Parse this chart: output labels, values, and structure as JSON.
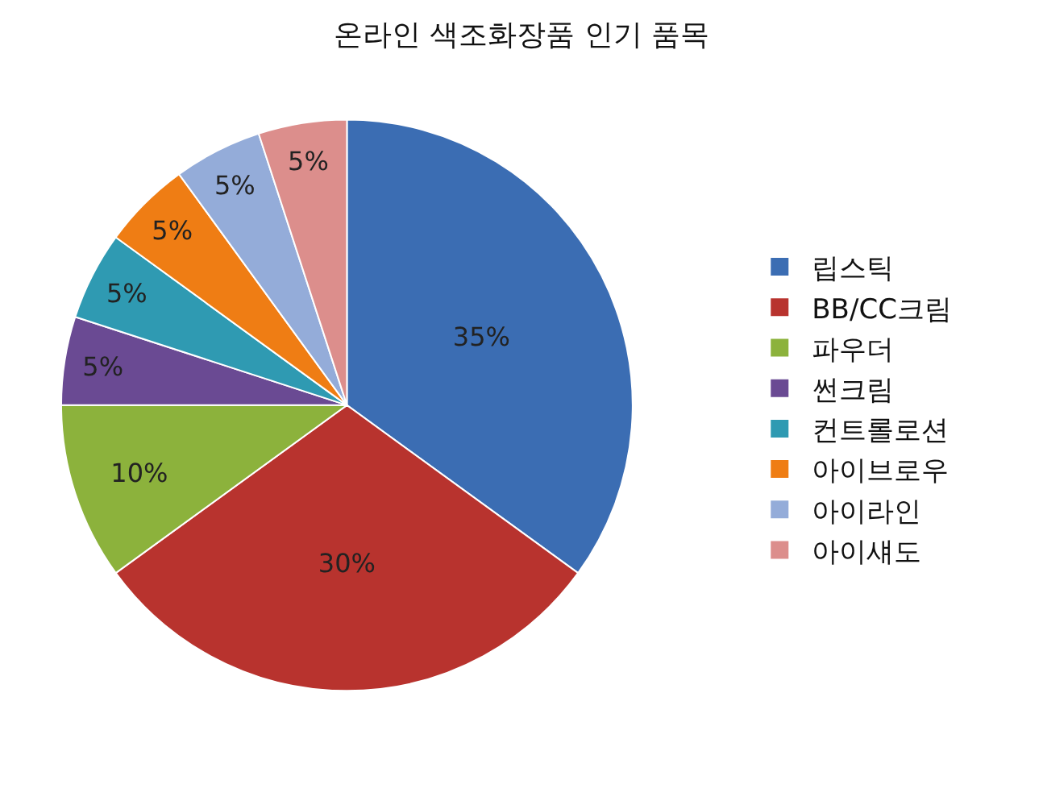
{
  "chart_data": {
    "type": "pie",
    "title": "온라인 색조화장품 인기 품목",
    "categories": [
      "립스틱",
      "BB/CC크림",
      "파우더",
      "썬크림",
      "컨트롤로션",
      "아이브로우",
      "아이라인",
      "아이섀도"
    ],
    "values": [
      35,
      30,
      10,
      5,
      5,
      5,
      5,
      5
    ],
    "value_labels": [
      "35%",
      "30%",
      "10%",
      "5%",
      "5%",
      "5%",
      "5%",
      "5%"
    ],
    "colors": [
      "#3b6db3",
      "#b8332e",
      "#8cb23c",
      "#6a4a93",
      "#2f9ab2",
      "#ef7d14",
      "#94acd9",
      "#dc8e8c"
    ],
    "legend": "right"
  }
}
